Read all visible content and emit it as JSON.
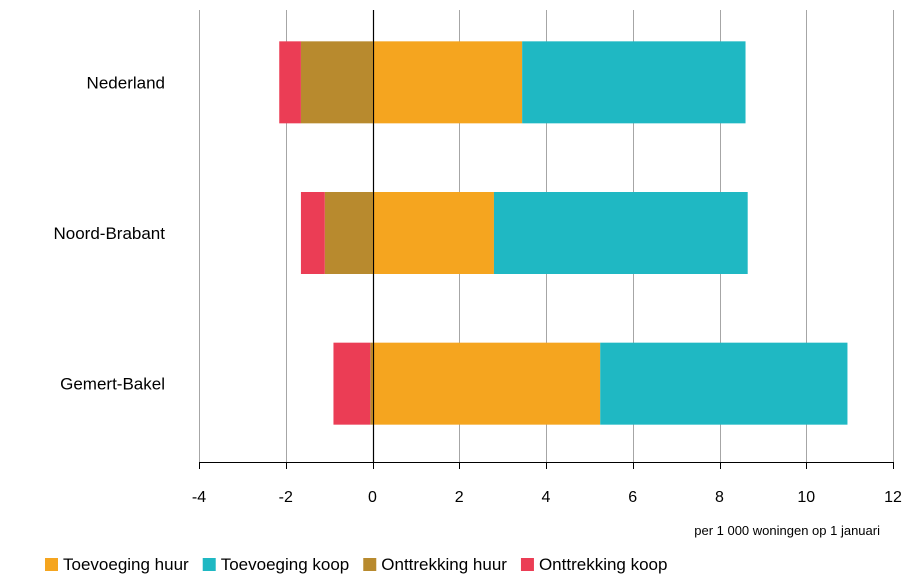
{
  "chart_data": {
    "type": "bar",
    "orientation": "horizontal",
    "stacked": true,
    "title": "",
    "xlabel": "per 1 000 woningen op 1 januari",
    "ylabel": "",
    "xlim": [
      -4,
      12
    ],
    "xticks": [
      -4,
      -2,
      0,
      2,
      4,
      6,
      8,
      10,
      12
    ],
    "xtick_labels": [
      "-4",
      "-2",
      "0",
      "2",
      "4",
      "6",
      "8",
      "10",
      "12"
    ],
    "grid": true,
    "legend_position": "bottom",
    "categories": [
      "Nederland",
      "Noord-Brabant",
      "Gemert-Bakel"
    ],
    "series": [
      {
        "name": "Toevoeging huur",
        "color": "#f5a51f",
        "values": [
          3.45,
          2.8,
          5.25
        ]
      },
      {
        "name": "Toevoeging koop",
        "color": "#1fb8c3",
        "values": [
          5.15,
          5.85,
          5.7
        ]
      },
      {
        "name": "Onttrekking huur",
        "color": "#b88a2e",
        "values": [
          -1.65,
          -1.1,
          -0.05
        ]
      },
      {
        "name": "Onttrekking koop",
        "color": "#eb3d55",
        "values": [
          -0.5,
          -0.55,
          -0.85
        ]
      }
    ]
  }
}
